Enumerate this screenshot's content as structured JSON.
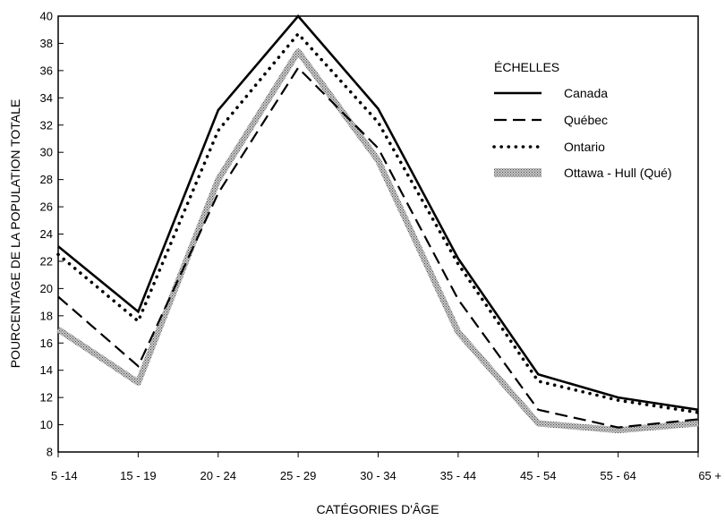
{
  "chart_data": {
    "type": "line",
    "title": "",
    "xlabel": "CATÉGORIES D'ÂGE",
    "ylabel": "POURCENTAGE DE LA POPULATION TOTALE",
    "categories": [
      "5 -14",
      "15 - 19",
      "20 - 24",
      "25 - 29",
      "30 - 34",
      "35 - 44",
      "45 - 54",
      "55 - 64",
      "65 +"
    ],
    "ylim": [
      8,
      40
    ],
    "yticks": [
      8,
      10,
      12,
      14,
      16,
      18,
      20,
      22,
      24,
      26,
      28,
      30,
      32,
      34,
      36,
      38,
      40
    ],
    "ytick_labels": [
      "8",
      "10",
      "12",
      "14",
      "16",
      "18",
      "20",
      "22",
      "24",
      "26",
      "28",
      "30",
      "32",
      "34",
      "36",
      "38",
      "40"
    ],
    "grid": false,
    "legend": {
      "title": "ÉCHELLES",
      "position": "right"
    },
    "series": [
      {
        "name": "Canada",
        "style": "solid",
        "color": "#000000",
        "values": [
          23.1,
          18.3,
          33.1,
          40.0,
          33.2,
          22.2,
          13.7,
          12.0,
          11.1
        ]
      },
      {
        "name": "Québec",
        "style": "dashed",
        "color": "#000000",
        "values": [
          19.4,
          14.3,
          27.0,
          36.2,
          30.3,
          19.2,
          11.1,
          9.8,
          10.4
        ]
      },
      {
        "name": "Ontario",
        "style": "dotted",
        "color": "#000000",
        "values": [
          22.5,
          17.6,
          31.6,
          38.7,
          32.2,
          21.8,
          13.2,
          11.8,
          10.9
        ]
      },
      {
        "name": "Ottawa - Hull (Qué)",
        "style": "shaded",
        "color": "#777777",
        "values": [
          17.0,
          13.1,
          28.0,
          37.4,
          29.4,
          16.8,
          10.1,
          9.6,
          10.1
        ]
      }
    ]
  }
}
